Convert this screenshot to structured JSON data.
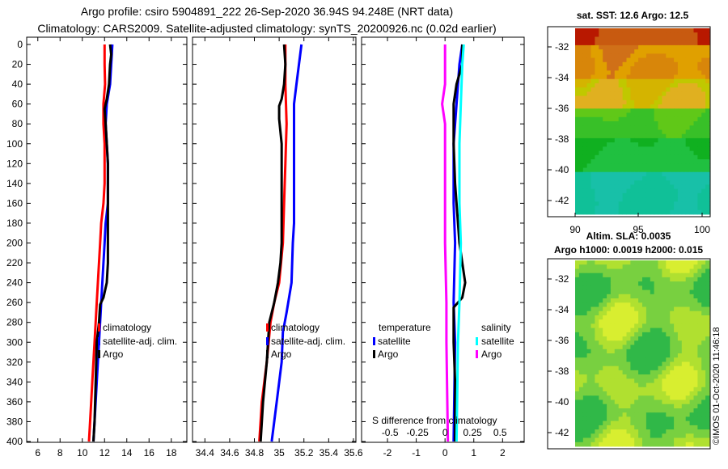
{
  "header": {
    "line1": "Argo profile: csiro 5904891_222 26-Sep-2020 36.94S 94.248E (NRT data)",
    "line2": "Climatology: CARS2009. Satellite-adjusted climatology: synTS_20200926.nc (0.02d earlier)"
  },
  "colors": {
    "climatology": "#ff0000",
    "satellite": "#0000ff",
    "argo": "#000000",
    "sat_salinity": "#00ffff",
    "argo_salinity": "#ff00ff"
  },
  "depth_axis": {
    "ticks": [
      0,
      20,
      40,
      60,
      80,
      100,
      120,
      140,
      160,
      180,
      200,
      220,
      240,
      260,
      280,
      300,
      320,
      340,
      360,
      380,
      400
    ],
    "range": [
      0,
      400
    ]
  },
  "chart_data": [
    {
      "type": "line",
      "id": "temperature",
      "xlim": [
        5,
        19.4
      ],
      "xticks": [
        6,
        8,
        10,
        12,
        14,
        16,
        18
      ],
      "ylim": [
        400,
        0
      ],
      "legend": [
        "climatology",
        "satellite-adj. clim.",
        "Argo"
      ],
      "series": [
        {
          "name": "climatology",
          "color": "#ff0000",
          "points": [
            [
              12.0,
              0
            ],
            [
              12.0,
              10
            ],
            [
              12.0,
              20
            ],
            [
              12.05,
              40
            ],
            [
              11.9,
              60
            ],
            [
              11.9,
              80
            ],
            [
              12.0,
              100
            ],
            [
              12.0,
              120
            ],
            [
              12.0,
              140
            ],
            [
              11.9,
              160
            ],
            [
              11.7,
              180
            ],
            [
              11.6,
              200
            ],
            [
              11.5,
              220
            ],
            [
              11.3,
              260
            ],
            [
              11.1,
              300
            ],
            [
              10.9,
              340
            ],
            [
              10.7,
              380
            ],
            [
              10.6,
              400
            ]
          ]
        },
        {
          "name": "satellite-adj. clim.",
          "color": "#0000ff",
          "points": [
            [
              12.7,
              0
            ],
            [
              12.6,
              20
            ],
            [
              12.5,
              40
            ],
            [
              12.2,
              60
            ],
            [
              12.1,
              80
            ],
            [
              12.2,
              100
            ],
            [
              12.3,
              120
            ],
            [
              12.3,
              140
            ],
            [
              12.3,
              160
            ],
            [
              12.1,
              180
            ],
            [
              12.0,
              200
            ],
            [
              11.9,
              220
            ],
            [
              11.7,
              260
            ],
            [
              11.5,
              300
            ],
            [
              11.3,
              340
            ],
            [
              11.1,
              380
            ],
            [
              11.0,
              400
            ]
          ]
        },
        {
          "name": "Argo",
          "color": "#000000",
          "points": [
            [
              12.5,
              0
            ],
            [
              12.6,
              10
            ],
            [
              12.5,
              20
            ],
            [
              12.4,
              40
            ],
            [
              12.2,
              55
            ],
            [
              12.0,
              65
            ],
            [
              12.1,
              80
            ],
            [
              12.2,
              100
            ],
            [
              12.3,
              120
            ],
            [
              12.3,
              140
            ],
            [
              12.3,
              160
            ],
            [
              12.3,
              180
            ],
            [
              12.3,
              200
            ],
            [
              12.3,
              220
            ],
            [
              12.2,
              240
            ],
            [
              11.9,
              255
            ],
            [
              11.6,
              262
            ],
            [
              11.5,
              280
            ],
            [
              11.3,
              300
            ],
            [
              11.2,
              340
            ],
            [
              11.1,
              380
            ],
            [
              11.0,
              400
            ]
          ]
        }
      ]
    },
    {
      "type": "line",
      "id": "salinity",
      "xlim": [
        34.3,
        35.62
      ],
      "xticks": [
        "34.4",
        "34.6",
        "34.8",
        "35",
        "35.2",
        "35.4",
        "35.6"
      ],
      "ylim": [
        400,
        0
      ],
      "legend": [
        "climatology",
        "satellite-adj. clim.",
        "Argo"
      ],
      "series": [
        {
          "name": "climatology",
          "color": "#ff0000",
          "points": [
            [
              35.05,
              0
            ],
            [
              35.05,
              40
            ],
            [
              35.06,
              80
            ],
            [
              35.05,
              120
            ],
            [
              35.04,
              160
            ],
            [
              35.03,
              200
            ],
            [
              35.0,
              240
            ],
            [
              34.96,
              260
            ],
            [
              34.93,
              280
            ],
            [
              34.9,
              320
            ],
            [
              34.86,
              360
            ],
            [
              34.84,
              400
            ]
          ]
        },
        {
          "name": "satellite-adj. clim.",
          "color": "#0000ff",
          "points": [
            [
              35.18,
              0
            ],
            [
              35.16,
              20
            ],
            [
              35.14,
              40
            ],
            [
              35.12,
              60
            ],
            [
              35.12,
              100
            ],
            [
              35.12,
              140
            ],
            [
              35.12,
              180
            ],
            [
              35.11,
              200
            ],
            [
              35.1,
              240
            ],
            [
              35.06,
              270
            ],
            [
              35.03,
              290
            ],
            [
              35.02,
              320
            ],
            [
              34.98,
              360
            ],
            [
              34.94,
              400
            ]
          ]
        },
        {
          "name": "Argo",
          "color": "#000000",
          "points": [
            [
              35.04,
              0
            ],
            [
              35.05,
              20
            ],
            [
              35.04,
              40
            ],
            [
              35.02,
              55
            ],
            [
              35.0,
              62
            ],
            [
              35.0,
              75
            ],
            [
              35.02,
              100
            ],
            [
              35.02,
              140
            ],
            [
              35.02,
              180
            ],
            [
              35.02,
              200
            ],
            [
              35.01,
              220
            ],
            [
              34.99,
              240
            ],
            [
              34.96,
              260
            ],
            [
              34.92,
              280
            ],
            [
              34.9,
              320
            ],
            [
              34.87,
              360
            ],
            [
              34.85,
              400
            ]
          ]
        }
      ]
    },
    {
      "type": "line",
      "id": "difference",
      "xlim": [
        -2.9,
        2.75
      ],
      "xticks": [
        "-2",
        "-1",
        "0",
        "1",
        "2"
      ],
      "subticks": [
        "-0.5",
        "-0.25",
        "0",
        "0.25",
        "0.5"
      ],
      "subaxis_label": "S difference from climatology",
      "ylim": [
        400,
        0
      ],
      "legend_headers": [
        "temperature",
        "salinity"
      ],
      "legend_items": [
        "satellite",
        "Argo",
        "satellite",
        "Argo"
      ],
      "series": [
        {
          "name": "temperature satellite",
          "color": "#0000ff",
          "points": [
            [
              0.6,
              0
            ],
            [
              0.5,
              20
            ],
            [
              0.4,
              60
            ],
            [
              0.3,
              100
            ],
            [
              0.3,
              160
            ],
            [
              0.35,
              200
            ],
            [
              0.3,
              260
            ],
            [
              0.35,
              300
            ],
            [
              0.3,
              400
            ]
          ]
        },
        {
          "name": "temperature Argo",
          "color": "#000000",
          "points": [
            [
              0.6,
              0
            ],
            [
              0.6,
              20
            ],
            [
              0.4,
              40
            ],
            [
              0.3,
              60
            ],
            [
              0.3,
              100
            ],
            [
              0.35,
              140
            ],
            [
              0.4,
              160
            ],
            [
              0.5,
              200
            ],
            [
              0.6,
              220
            ],
            [
              0.7,
              240
            ],
            [
              0.6,
              255
            ],
            [
              0.3,
              265
            ],
            [
              0.3,
              300
            ],
            [
              0.35,
              340
            ],
            [
              0.35,
              400
            ]
          ]
        },
        {
          "name": "salinity satellite",
          "color": "#00ffff",
          "points": [
            [
              0.65,
              0
            ],
            [
              0.6,
              20
            ],
            [
              0.55,
              60
            ],
            [
              0.5,
              100
            ],
            [
              0.5,
              160
            ],
            [
              0.55,
              200
            ],
            [
              0.5,
              260
            ],
            [
              0.45,
              300
            ],
            [
              0.4,
              400
            ]
          ]
        },
        {
          "name": "salinity Argo",
          "color": "#ff00ff",
          "points": [
            [
              0.0,
              0
            ],
            [
              0.0,
              40
            ],
            [
              -0.1,
              60
            ],
            [
              -0.05,
              70
            ],
            [
              0.0,
              80
            ],
            [
              0.0,
              120
            ],
            [
              0.0,
              200
            ],
            [
              0.05,
              260
            ],
            [
              0.05,
              300
            ],
            [
              0.1,
              400
            ]
          ]
        }
      ]
    },
    {
      "type": "heatmap",
      "id": "sst_map",
      "title": "sat. SST: 12.6 Argo: 12.5",
      "xticks": [
        "90",
        "95",
        "100"
      ],
      "yticks": [
        "-32",
        "-34",
        "-36",
        "-38",
        "-40",
        "-42"
      ]
    },
    {
      "type": "heatmap",
      "id": "sla_map",
      "title_line1": "Altim. SLA: 0.0035",
      "title_line2": "Argo h1000: 0.0019 h2000: 0.015",
      "yticks": [
        "-32",
        "-34",
        "-36",
        "-38",
        "-40",
        "-42"
      ]
    }
  ],
  "credit": "©IMOS 01-Oct-2020 11:46:18"
}
